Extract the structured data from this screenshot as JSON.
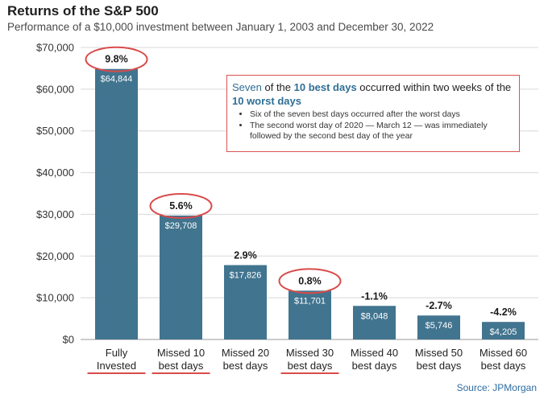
{
  "colors": {
    "bar": "#41748f",
    "circle": "#d94b4b",
    "underline": "#d94b4b",
    "highlight_text": "#2f6f95",
    "source_text": "#2d6da3"
  },
  "chart_data": {
    "type": "bar",
    "title": "Returns of the S&P 500",
    "subtitle": "Performance of a $10,000 investment between January 1, 2003 and December 30, 2022",
    "categories": [
      [
        "Fully",
        "Invested"
      ],
      [
        "Missed 10",
        "best days"
      ],
      [
        "Missed 20",
        "best days"
      ],
      [
        "Missed 30",
        "best days"
      ],
      [
        "Missed 40",
        "best days"
      ],
      [
        "Missed 50",
        "best days"
      ],
      [
        "Missed 60",
        "best days"
      ]
    ],
    "values": [
      64844,
      29708,
      17826,
      11701,
      8048,
      5746,
      4205
    ],
    "value_labels": [
      "$64,844",
      "$29,708",
      "$17,826",
      "$11,701",
      "$8,048",
      "$5,746",
      "$4,205"
    ],
    "percent_labels": [
      "9.8%",
      "5.6%",
      "2.9%",
      "0.8%",
      "-1.1%",
      "-2.7%",
      "-4.2%"
    ],
    "circled": [
      true,
      true,
      false,
      true,
      false,
      false,
      false
    ],
    "underlined": [
      true,
      true,
      false,
      true,
      false,
      false,
      false
    ],
    "ylim": [
      0,
      70000
    ],
    "yticks": [
      0,
      10000,
      20000,
      30000,
      40000,
      50000,
      60000,
      70000
    ],
    "ytick_labels": [
      "$0",
      "$10,000",
      "$20,000",
      "$30,000",
      "$40,000",
      "$50,000",
      "$60,000",
      "$70,000"
    ],
    "grid": true,
    "xlabel": "",
    "ylabel": ""
  },
  "annotation": {
    "headline_parts": [
      {
        "text": "Seven",
        "style": "hl"
      },
      {
        "text": " of the ",
        "style": "plain"
      },
      {
        "text": "10 best days",
        "style": "hl strong"
      },
      {
        "text": " occurred within two weeks of the ",
        "style": "plain"
      },
      {
        "text": "10 worst days",
        "style": "hl strong"
      }
    ],
    "bullets": [
      "Six of the seven best days occurred after the worst days",
      "The second worst day of 2020 — March 12 — was immediately followed by the second best day of the year"
    ]
  },
  "source": "Source: JPMorgan"
}
